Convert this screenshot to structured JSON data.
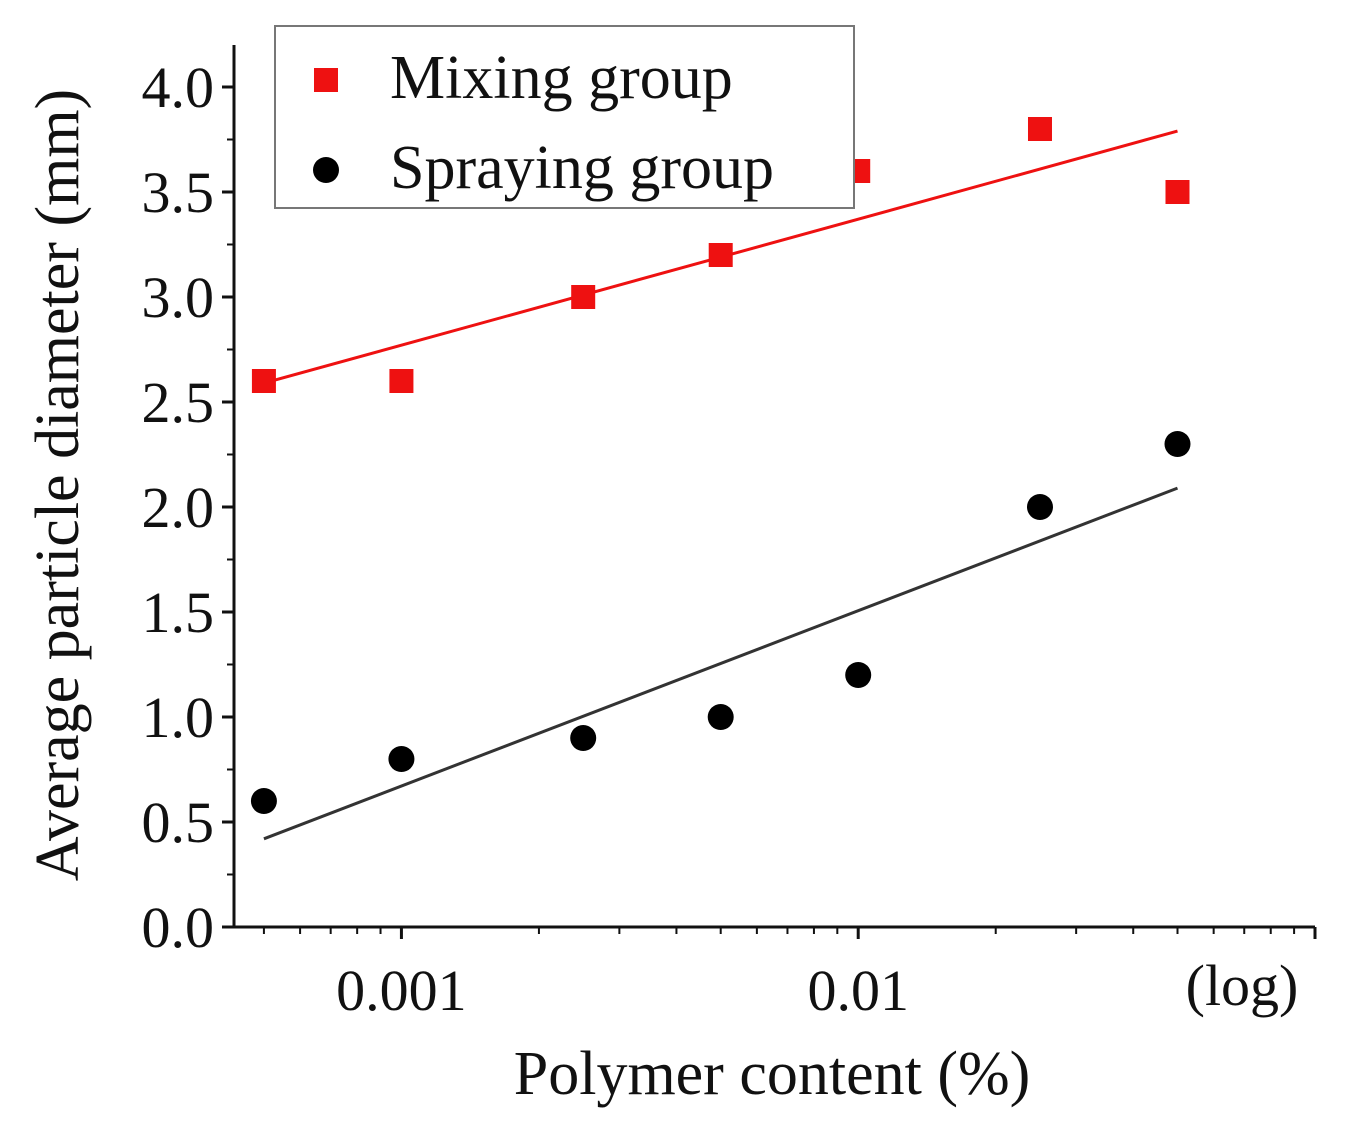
{
  "chart_data": {
    "type": "scatter",
    "xlabel": "Polymer content (%)",
    "ylabel": "Average particle diameter (mm)",
    "x_scale": "log",
    "x_scale_note": "(log)",
    "xlim": [
      0.00043,
      0.1
    ],
    "ylim": [
      0,
      4.2
    ],
    "x_tick_labels": [
      {
        "value": 0.001,
        "label": "0.001"
      },
      {
        "value": 0.01,
        "label": "0.01"
      }
    ],
    "y_tick_labels": [
      {
        "value": 0,
        "label": "0.0"
      },
      {
        "value": 0.5,
        "label": "0.5"
      },
      {
        "value": 1,
        "label": "1.0"
      },
      {
        "value": 1.5,
        "label": "1.5"
      },
      {
        "value": 2,
        "label": "2.0"
      },
      {
        "value": 2.5,
        "label": "2.5"
      },
      {
        "value": 3,
        "label": "3.0"
      },
      {
        "value": 3.5,
        "label": "3.5"
      },
      {
        "value": 4,
        "label": "4.0"
      }
    ],
    "y_minor_step": 0.25,
    "grid": false,
    "legend_position": "top-left",
    "series": [
      {
        "name": "Mixing group",
        "marker": "square",
        "color": "#ee1111",
        "points": [
          {
            "x": 0.0005,
            "y": 2.6
          },
          {
            "x": 0.001,
            "y": 2.6
          },
          {
            "x": 0.0025,
            "y": 3.0
          },
          {
            "x": 0.005,
            "y": 3.2
          },
          {
            "x": 0.01,
            "y": 3.6
          },
          {
            "x": 0.025,
            "y": 3.8
          },
          {
            "x": 0.05,
            "y": 3.5
          }
        ],
        "fit_line": {
          "x": [
            0.0005,
            0.05
          ],
          "y": [
            2.59,
            3.79
          ]
        }
      },
      {
        "name": "Spraying group",
        "marker": "circle",
        "color": "#000000",
        "line_color": "#333333",
        "points": [
          {
            "x": 0.0005,
            "y": 0.6
          },
          {
            "x": 0.001,
            "y": 0.8
          },
          {
            "x": 0.0025,
            "y": 0.9
          },
          {
            "x": 0.005,
            "y": 1.0
          },
          {
            "x": 0.01,
            "y": 1.2
          },
          {
            "x": 0.025,
            "y": 2.0
          },
          {
            "x": 0.05,
            "y": 2.3
          }
        ],
        "fit_line": {
          "x": [
            0.0005,
            0.05
          ],
          "y": [
            0.42,
            2.09
          ]
        }
      }
    ]
  }
}
